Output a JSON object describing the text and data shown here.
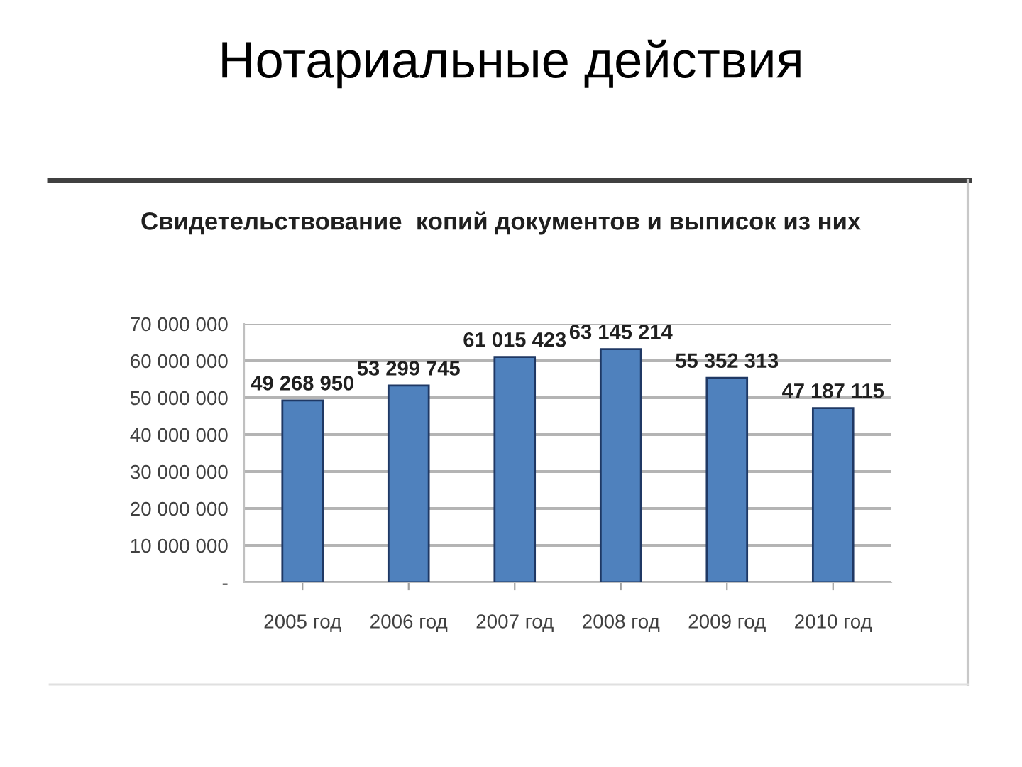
{
  "chart_data": {
    "type": "bar",
    "title": "Нотариальные действия",
    "subtitle": "Свидетельствование  копий документов и выписок из них",
    "categories": [
      "2005 год",
      "2006 год",
      "2007 год",
      "2008 год",
      "2009 год",
      "2010 год"
    ],
    "values": [
      49268950,
      53299745,
      61015423,
      63145214,
      55352313,
      47187115
    ],
    "value_labels": [
      "49 268 950",
      "53 299 745",
      "61 015 423",
      "63 145 214",
      "55 352 313",
      "47 187 115"
    ],
    "color": "#4f81bd",
    "ylim": [
      0,
      70000000
    ],
    "yticks": [
      {
        "value": 0,
        "label": "-"
      },
      {
        "value": 10000000,
        "label": "10 000 000"
      },
      {
        "value": 20000000,
        "label": "20 000 000"
      },
      {
        "value": 30000000,
        "label": "30 000 000"
      },
      {
        "value": 40000000,
        "label": "40 000 000"
      },
      {
        "value": 50000000,
        "label": "50 000 000"
      },
      {
        "value": 60000000,
        "label": "60 000 000"
      },
      {
        "value": 70000000,
        "label": "70 000 000"
      }
    ],
    "grid": "y"
  }
}
